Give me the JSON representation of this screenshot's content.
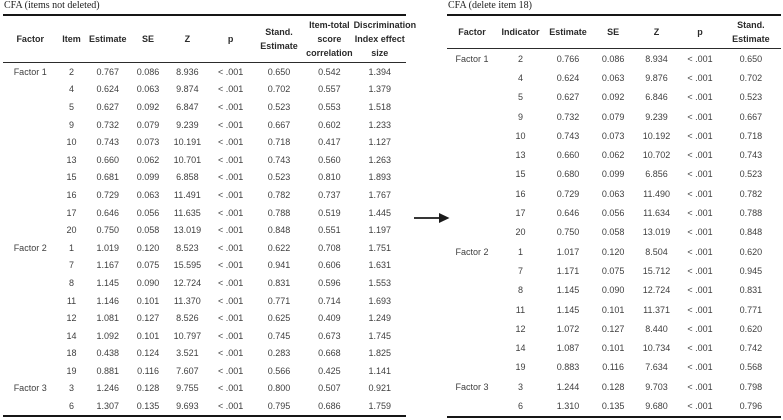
{
  "left_table": {
    "title": "CFA (items not deleted)",
    "columns": [
      "Factor",
      "Item",
      "Estimate",
      "SE",
      "Z",
      "p",
      "Stand.\nEstimate",
      "Item-total\nscore\ncorrelation",
      "Discrimination\nIndex effect\nsize"
    ],
    "rows": [
      [
        "Factor 1",
        "2",
        "0.767",
        "0.086",
        "8.936",
        "< .001",
        "0.650",
        "0.542",
        "1.394"
      ],
      [
        "",
        "4",
        "0.624",
        "0.063",
        "9.874",
        "< .001",
        "0.702",
        "0.557",
        "1.379"
      ],
      [
        "",
        "5",
        "0.627",
        "0.092",
        "6.847",
        "< .001",
        "0.523",
        "0.553",
        "1.518"
      ],
      [
        "",
        "9",
        "0.732",
        "0.079",
        "9.239",
        "< .001",
        "0.667",
        "0.602",
        "1.233"
      ],
      [
        "",
        "10",
        "0.743",
        "0.073",
        "10.191",
        "< .001",
        "0.718",
        "0.417",
        "1.127"
      ],
      [
        "",
        "13",
        "0.660",
        "0.062",
        "10.701",
        "< .001",
        "0.743",
        "0.560",
        "1.263"
      ],
      [
        "",
        "15",
        "0.681",
        "0.099",
        "6.858",
        "< .001",
        "0.523",
        "0.810",
        "1.893"
      ],
      [
        "",
        "16",
        "0.729",
        "0.063",
        "11.491",
        "< .001",
        "0.782",
        "0.737",
        "1.767"
      ],
      [
        "",
        "17",
        "0.646",
        "0.056",
        "11.635",
        "< .001",
        "0.788",
        "0.519",
        "1.445"
      ],
      [
        "",
        "20",
        "0.750",
        "0.058",
        "13.019",
        "< .001",
        "0.848",
        "0.551",
        "1.197"
      ],
      [
        "Factor 2",
        "1",
        "1.019",
        "0.120",
        "8.523",
        "< .001",
        "0.622",
        "0.708",
        "1.751"
      ],
      [
        "",
        "7",
        "1.167",
        "0.075",
        "15.595",
        "< .001",
        "0.941",
        "0.606",
        "1.631"
      ],
      [
        "",
        "8",
        "1.145",
        "0.090",
        "12.724",
        "< .001",
        "0.831",
        "0.596",
        "1.553"
      ],
      [
        "",
        "11",
        "1.146",
        "0.101",
        "11.370",
        "< .001",
        "0.771",
        "0.714",
        "1.693"
      ],
      [
        "",
        "12",
        "1.081",
        "0.127",
        "8.526",
        "< .001",
        "0.625",
        "0.409",
        "1.249"
      ],
      [
        "",
        "14",
        "1.092",
        "0.101",
        "10.797",
        "< .001",
        "0.745",
        "0.673",
        "1.745"
      ],
      [
        "",
        "18",
        "0.438",
        "0.124",
        "3.521",
        "< .001",
        "0.283",
        "0.668",
        "1.825"
      ],
      [
        "",
        "19",
        "0.881",
        "0.116",
        "7.607",
        "< .001",
        "0.566",
        "0.425",
        "1.141"
      ],
      [
        "Factor 3",
        "3",
        "1.246",
        "0.128",
        "9.755",
        "< .001",
        "0.800",
        "0.507",
        "0.921"
      ],
      [
        "",
        "6",
        "1.307",
        "0.135",
        "9.693",
        "< .001",
        "0.795",
        "0.686",
        "1.759"
      ]
    ]
  },
  "right_table": {
    "title": "CFA (delete item 18)",
    "columns": [
      "Factor",
      "Indicator",
      "Estimate",
      "SE",
      "Z",
      "p",
      "Stand. Estimate"
    ],
    "rows": [
      [
        "Factor 1",
        "2",
        "0.766",
        "0.086",
        "8.934",
        "< .001",
        "0.650"
      ],
      [
        "",
        "4",
        "0.624",
        "0.063",
        "9.876",
        "< .001",
        "0.702"
      ],
      [
        "",
        "5",
        "0.627",
        "0.092",
        "6.846",
        "< .001",
        "0.523"
      ],
      [
        "",
        "9",
        "0.732",
        "0.079",
        "9.239",
        "< .001",
        "0.667"
      ],
      [
        "",
        "10",
        "0.743",
        "0.073",
        "10.192",
        "< .001",
        "0.718"
      ],
      [
        "",
        "13",
        "0.660",
        "0.062",
        "10.702",
        "< .001",
        "0.743"
      ],
      [
        "",
        "15",
        "0.680",
        "0.099",
        "6.856",
        "< .001",
        "0.523"
      ],
      [
        "",
        "16",
        "0.729",
        "0.063",
        "11.490",
        "< .001",
        "0.782"
      ],
      [
        "",
        "17",
        "0.646",
        "0.056",
        "11.634",
        "< .001",
        "0.788"
      ],
      [
        "",
        "20",
        "0.750",
        "0.058",
        "13.019",
        "< .001",
        "0.848"
      ],
      [
        "Factor 2",
        "1",
        "1.017",
        "0.120",
        "8.504",
        "< .001",
        "0.620"
      ],
      [
        "",
        "7",
        "1.171",
        "0.075",
        "15.712",
        "< .001",
        "0.945"
      ],
      [
        "",
        "8",
        "1.145",
        "0.090",
        "12.724",
        "< .001",
        "0.831"
      ],
      [
        "",
        "11",
        "1.145",
        "0.101",
        "11.371",
        "< .001",
        "0.771"
      ],
      [
        "",
        "12",
        "1.072",
        "0.127",
        "8.440",
        "< .001",
        "0.620"
      ],
      [
        "",
        "14",
        "1.087",
        "0.101",
        "10.734",
        "< .001",
        "0.742"
      ],
      [
        "",
        "19",
        "0.883",
        "0.116",
        "7.634",
        "< .001",
        "0.568"
      ],
      [
        "Factor 3",
        "3",
        "1.244",
        "0.128",
        "9.703",
        "< .001",
        "0.798"
      ],
      [
        "",
        "6",
        "1.310",
        "0.135",
        "9.680",
        "< .001",
        "0.796"
      ]
    ]
  },
  "icons": {
    "transform_arrow": "→"
  },
  "colors": {
    "border": "#161616",
    "header_text": "#2b2b2b",
    "body_text": "#3f3f3f"
  }
}
